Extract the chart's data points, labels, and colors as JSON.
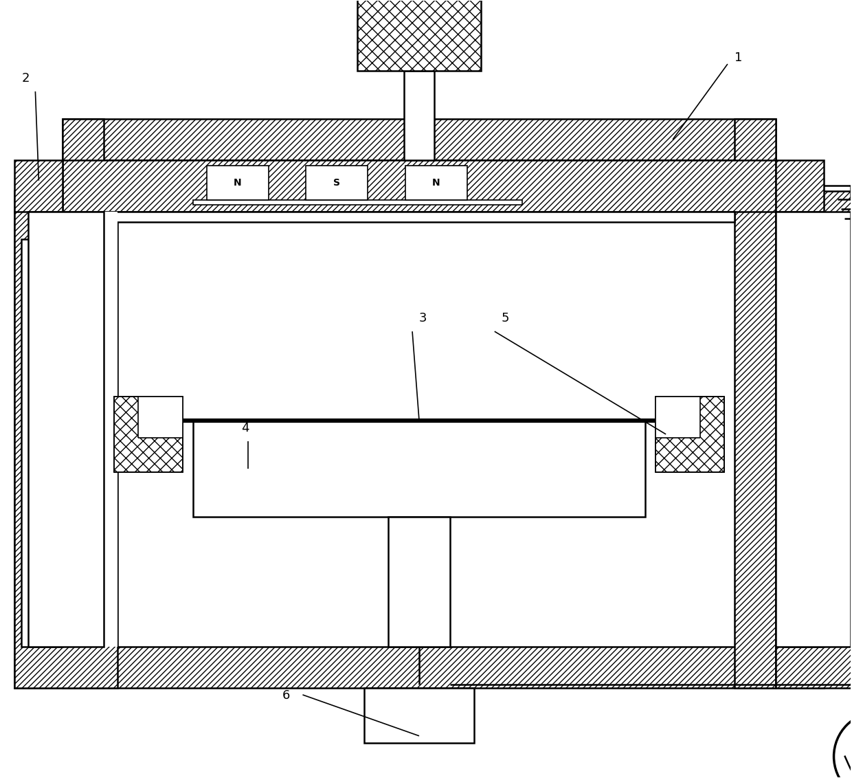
{
  "bg": "#ffffff",
  "ec": "#000000",
  "magnets": [
    "N",
    "S",
    "N"
  ],
  "figsize": [
    12.4,
    11.32
  ],
  "dpi": 100
}
